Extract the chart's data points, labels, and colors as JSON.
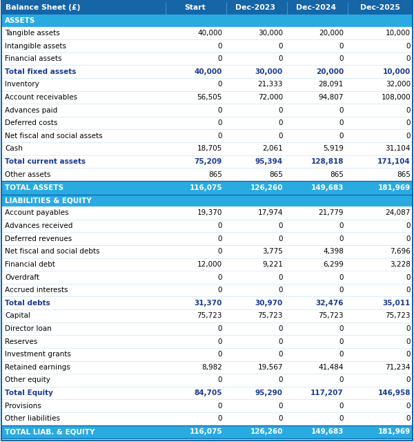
{
  "title": "Balance Sheet (£)",
  "columns": [
    "Start",
    "Dec-2023",
    "Dec-2024",
    "Dec-2025"
  ],
  "header_bg": "#1565a7",
  "header_text": "#ffffff",
  "section_bg": "#29abe2",
  "section_text": "#ffffff",
  "total_bg": "#29abe2",
  "total_text": "#ffffff",
  "bold_row_text": "#1a3a8f",
  "normal_text": "#000000",
  "white_bg": "#ffffff",
  "border_color": "#1565a7",
  "light_line": "#c8e6f5",
  "rows": [
    {
      "label": "ASSETS",
      "values": [
        "",
        "",
        "",
        ""
      ],
      "type": "section"
    },
    {
      "label": "Tangible assets",
      "values": [
        "40,000",
        "30,000",
        "20,000",
        "10,000"
      ],
      "type": "normal"
    },
    {
      "label": "Intangible assets",
      "values": [
        "0",
        "0",
        "0",
        "0"
      ],
      "type": "normal"
    },
    {
      "label": "Financial assets",
      "values": [
        "0",
        "0",
        "0",
        "0"
      ],
      "type": "normal"
    },
    {
      "label": "Total fixed assets",
      "values": [
        "40,000",
        "30,000",
        "20,000",
        "10,000"
      ],
      "type": "bold"
    },
    {
      "label": "Inventory",
      "values": [
        "0",
        "21,333",
        "28,091",
        "32,000"
      ],
      "type": "normal"
    },
    {
      "label": "Account receivables",
      "values": [
        "56,505",
        "72,000",
        "94,807",
        "108,000"
      ],
      "type": "normal"
    },
    {
      "label": "Advances paid",
      "values": [
        "0",
        "0",
        "0",
        "0"
      ],
      "type": "normal"
    },
    {
      "label": "Deferred costs",
      "values": [
        "0",
        "0",
        "0",
        "0"
      ],
      "type": "normal"
    },
    {
      "label": "Net fiscal and social assets",
      "values": [
        "0",
        "0",
        "0",
        "0"
      ],
      "type": "normal"
    },
    {
      "label": "Cash",
      "values": [
        "18,705",
        "2,061",
        "5,919",
        "31,104"
      ],
      "type": "normal"
    },
    {
      "label": "Total current assets",
      "values": [
        "75,209",
        "95,394",
        "128,818",
        "171,104"
      ],
      "type": "bold"
    },
    {
      "label": "Other assets",
      "values": [
        "865",
        "865",
        "865",
        "865"
      ],
      "type": "normal"
    },
    {
      "label": "TOTAL ASSETS",
      "values": [
        "116,075",
        "126,260",
        "149,683",
        "181,969"
      ],
      "type": "total"
    },
    {
      "label": "LIABILITIES & EQUITY",
      "values": [
        "",
        "",
        "",
        ""
      ],
      "type": "section"
    },
    {
      "label": "Account payables",
      "values": [
        "19,370",
        "17,974",
        "21,779",
        "24,087"
      ],
      "type": "normal"
    },
    {
      "label": "Advances received",
      "values": [
        "0",
        "0",
        "0",
        "0"
      ],
      "type": "normal"
    },
    {
      "label": "Deferred revenues",
      "values": [
        "0",
        "0",
        "0",
        "0"
      ],
      "type": "normal"
    },
    {
      "label": "Net fiscal and social debts",
      "values": [
        "0",
        "3,775",
        "4,398",
        "7,696"
      ],
      "type": "normal"
    },
    {
      "label": "Financial debt",
      "values": [
        "12,000",
        "9,221",
        "6,299",
        "3,228"
      ],
      "type": "normal"
    },
    {
      "label": "Overdraft",
      "values": [
        "0",
        "0",
        "0",
        "0"
      ],
      "type": "normal"
    },
    {
      "label": "Accrued interests",
      "values": [
        "0",
        "0",
        "0",
        "0"
      ],
      "type": "normal"
    },
    {
      "label": "Total debts",
      "values": [
        "31,370",
        "30,970",
        "32,476",
        "35,011"
      ],
      "type": "bold"
    },
    {
      "label": "Capital",
      "values": [
        "75,723",
        "75,723",
        "75,723",
        "75,723"
      ],
      "type": "normal"
    },
    {
      "label": "Director loan",
      "values": [
        "0",
        "0",
        "0",
        "0"
      ],
      "type": "normal"
    },
    {
      "label": "Reserves",
      "values": [
        "0",
        "0",
        "0",
        "0"
      ],
      "type": "normal"
    },
    {
      "label": "Investment grants",
      "values": [
        "0",
        "0",
        "0",
        "0"
      ],
      "type": "normal"
    },
    {
      "label": "Retained earnings",
      "values": [
        "8,982",
        "19,567",
        "41,484",
        "71,234"
      ],
      "type": "normal"
    },
    {
      "label": "Other equity",
      "values": [
        "0",
        "0",
        "0",
        "0"
      ],
      "type": "normal"
    },
    {
      "label": "Total Equity",
      "values": [
        "84,705",
        "95,290",
        "117,207",
        "146,958"
      ],
      "type": "bold"
    },
    {
      "label": "Provisions",
      "values": [
        "0",
        "0",
        "0",
        "0"
      ],
      "type": "normal"
    },
    {
      "label": "Other liabilities",
      "values": [
        "0",
        "0",
        "0",
        "0"
      ],
      "type": "normal"
    },
    {
      "label": "TOTAL LIAB. & EQUITY",
      "values": [
        "116,075",
        "126,260",
        "149,683",
        "181,969"
      ],
      "type": "total"
    }
  ],
  "figw": 6.0,
  "figh": 6.4,
  "dpi": 100
}
